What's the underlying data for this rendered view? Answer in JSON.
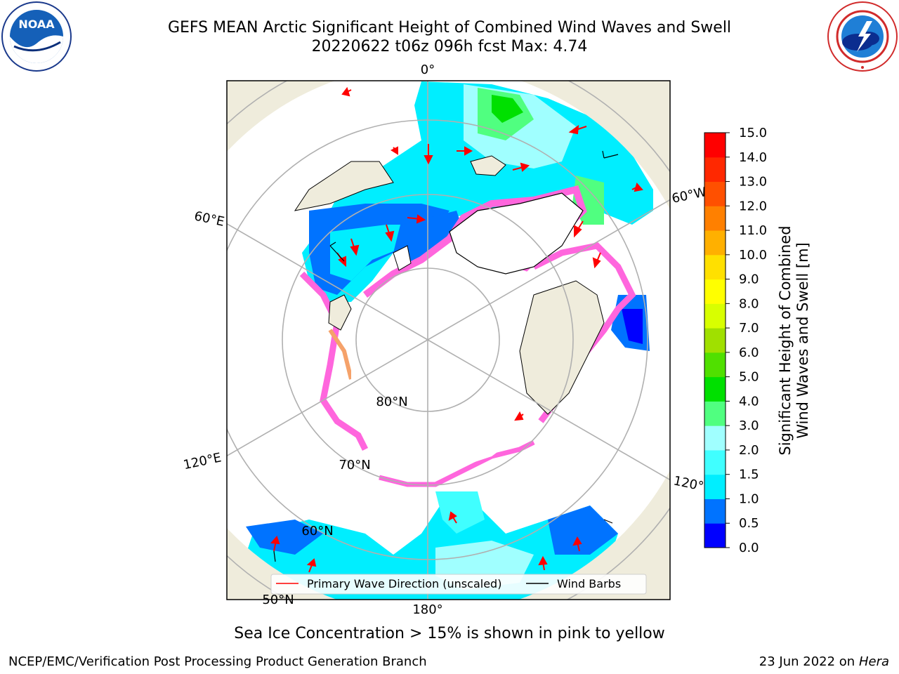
{
  "header": {
    "title_line1": "GEFS MEAN Arctic Significant Height of Combined Wind Waves and Swell",
    "title_line2": "20220622 t06z 096h fcst   Max: 4.74"
  },
  "logos": {
    "left": "noaa-logo",
    "left_text": "NOAA",
    "right": "nws-logo"
  },
  "map": {
    "lon_labels": [
      "0°",
      "60°W",
      "120°W",
      "180°",
      "120°E",
      "60°E"
    ],
    "lat_labels": [
      "80°N",
      "70°N",
      "60°N",
      "50°N"
    ],
    "colors": {
      "land": "#efecdc",
      "ocean_white": "#ffffff",
      "grid": "#b0b0b0",
      "ice_pink": "#ff66dd",
      "ice_orange": "#f5a26a"
    },
    "legend": {
      "primary_wave": "Primary Wave Direction (unscaled)",
      "wind_barbs": "Wind Barbs",
      "primary_wave_color": "#ff0000",
      "wind_barbs_color": "#000000"
    }
  },
  "colorbar": {
    "ticks": [
      "0.0",
      "0.5",
      "1.0",
      "1.5",
      "2.0",
      "3.0",
      "4.0",
      "5.0",
      "6.0",
      "7.0",
      "8.0",
      "9.0",
      "10.0",
      "11.0",
      "12.0",
      "13.0",
      "14.0",
      "15.0"
    ],
    "colors": [
      "#0000ff",
      "#0073ff",
      "#00eeff",
      "#40ffff",
      "#a0ffff",
      "#50ff80",
      "#00e000",
      "#50e000",
      "#a0e000",
      "#d8ff00",
      "#ffff00",
      "#ffe000",
      "#ffb000",
      "#ff8000",
      "#ff5000",
      "#ff2800",
      "#ff0000"
    ],
    "label_line1": "Significant Height of Combined",
    "label_line2": "Wind Waves and Swell [m]"
  },
  "footer": {
    "caption": "Sea Ice Concentration > 15% is shown in pink to yellow",
    "left": "NCEP/EMC/Verification Post Processing Product Generation Branch",
    "right_date": "23 Jun 2022 on",
    "right_host": "Hera"
  }
}
